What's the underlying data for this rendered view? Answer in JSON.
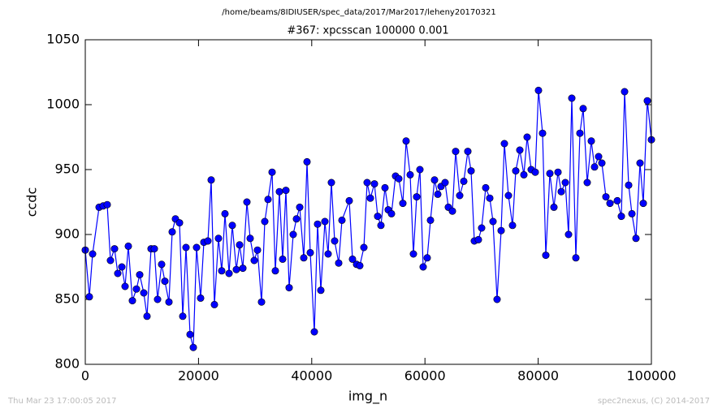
{
  "chart_data": {
    "type": "line",
    "suptitle": "/home/beams/8IDIUSER/spec_data/2017/Mar2017/leheny20170321",
    "title": "#367: xpcsscan 100000 0.001",
    "xlabel": "img_n",
    "ylabel": "ccdc",
    "footer_left": "Thu Mar 23 17:00:05 2017",
    "footer_right": "spec2nexus, (C) 2014-2017",
    "xlim": [
      0,
      100000
    ],
    "xticks": [
      0,
      20000,
      40000,
      60000,
      80000,
      100000
    ],
    "ylim": [
      800,
      1050
    ],
    "yticks": [
      800,
      850,
      900,
      950,
      1000,
      1050
    ],
    "grid": false,
    "series": [
      {
        "color": "#0000ff",
        "x": [
          0,
          717,
          1291,
          2440,
          3156,
          3874,
          4447,
          5165,
          5739,
          6456,
          7030,
          7604,
          8321,
          9039,
          9613,
          10330,
          10904,
          11621,
          12195,
          12769,
          13486,
          14060,
          14778,
          15351,
          15925,
          16643,
          17217,
          17791,
          18508,
          19082,
          19656,
          20373,
          20947,
          21664,
          22238,
          22812,
          23529,
          24103,
          24677,
          25395,
          25968,
          26686,
          27260,
          27834,
          28551,
          29125,
          29842,
          30416,
          31133,
          31707,
          32281,
          32999,
          33572,
          34290,
          34864,
          35438,
          36011,
          36729,
          37303,
          37877,
          38594,
          39168,
          39742,
          40459,
          41033,
          41607,
          42324,
          42898,
          43472,
          44046,
          44763,
          45337,
          46628,
          47202,
          47920,
          48494,
          49211,
          49785,
          50359,
          51076,
          51650,
          52224,
          52941,
          53515,
          54089,
          54806,
          55380,
          56098,
          56671,
          57389,
          57963,
          58537,
          59110,
          59684,
          60402,
          60976,
          61693,
          62267,
          62841,
          63558,
          64132,
          64849,
          65423,
          66141,
          66858,
          67575,
          68149,
          68723,
          69440,
          70014,
          70732,
          71449,
          72023,
          72740,
          73458,
          74032,
          74749,
          75466,
          76040,
          76758,
          77475,
          78049,
          78766,
          79484,
          80057,
          80775,
          81349,
          82066,
          82783,
          83501,
          84075,
          84792,
          85366,
          85940,
          86657,
          87374,
          87948,
          88666,
          89383,
          89957,
          90674,
          91248,
          91966,
          92683,
          93974,
          94692,
          95265,
          95983,
          96557,
          97274,
          97991,
          98565,
          99283,
          100000
        ],
        "values": [
          888,
          852,
          885,
          921,
          922,
          923,
          880,
          889,
          870,
          875,
          860,
          891,
          849,
          858,
          869,
          855,
          837,
          889,
          889,
          850,
          877,
          864,
          848,
          902,
          912,
          909,
          837,
          890,
          823,
          813,
          890,
          851,
          894,
          895,
          942,
          846,
          897,
          872,
          916,
          870,
          907,
          873,
          892,
          874,
          925,
          897,
          880,
          888,
          848,
          910,
          927,
          948,
          872,
          933,
          881,
          934,
          859,
          900,
          912,
          921,
          882,
          956,
          886,
          825,
          908,
          857,
          910,
          885,
          940,
          895,
          878,
          911,
          926,
          881,
          877,
          876,
          890,
          940,
          928,
          939,
          914,
          907,
          936,
          919,
          916,
          945,
          943,
          924,
          972,
          946,
          885,
          929,
          950,
          875,
          882,
          911,
          942,
          931,
          937,
          940,
          921,
          918,
          964,
          930,
          941,
          964,
          949,
          895,
          896,
          905,
          936,
          928,
          910,
          850,
          903,
          970,
          930,
          907,
          949,
          965,
          946,
          975,
          950,
          948,
          1011,
          978,
          884,
          947,
          921,
          948,
          933,
          940,
          900,
          1005,
          882,
          978,
          997,
          940,
          972,
          952,
          960,
          955,
          929,
          924,
          926,
          914,
          1010,
          938,
          916,
          897,
          955,
          924,
          1003,
          973
        ]
      }
    ]
  }
}
